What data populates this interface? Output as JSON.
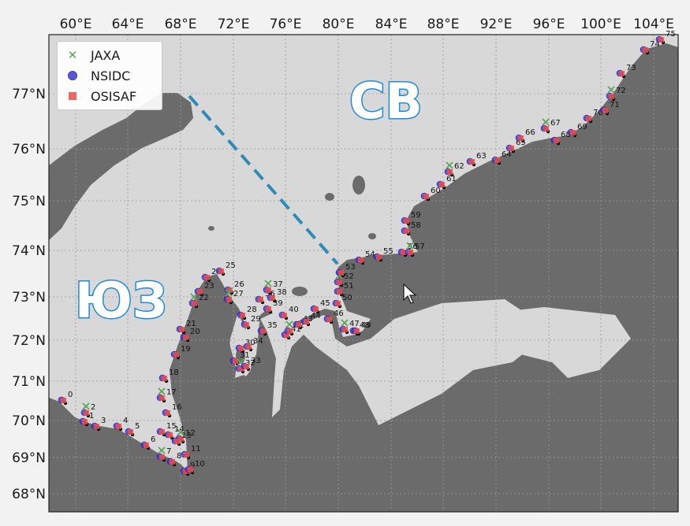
{
  "map": {
    "lon_labels": [
      "60°E",
      "64°E",
      "68°E",
      "72°E",
      "76°E",
      "80°E",
      "84°E",
      "88°E",
      "92°E",
      "96°E",
      "100°E",
      "104°E"
    ],
    "lat_labels": [
      "77°N",
      "76°N",
      "75°N",
      "74°N",
      "73°N",
      "72°N",
      "71°N",
      "70°N",
      "69°N",
      "68°N"
    ],
    "region_ne": "СВ",
    "region_sw": "ЮЗ",
    "colors": {
      "land": "#6b6b6b",
      "sea": "#d6d6d6",
      "route": "#2e8bb5",
      "jaxa": "#5aa55a",
      "nsidc": "#3a3ad8",
      "osisaf": "#ee4a4a"
    }
  },
  "legend": {
    "jaxa": {
      "label": "JAXA",
      "symbol": "x-mark"
    },
    "nsidc": {
      "label": "NSIDC",
      "symbol": "circle"
    },
    "osisaf": {
      "label": "OSISAF",
      "symbol": "square"
    }
  },
  "stations": [
    "0",
    "1",
    "2",
    "3",
    "4",
    "5",
    "6",
    "7",
    "8",
    "9",
    "10",
    "11",
    "12",
    "13",
    "14",
    "15",
    "16",
    "17",
    "18",
    "19",
    "20",
    "21",
    "22",
    "23",
    "24",
    "25",
    "26",
    "27",
    "28",
    "29",
    "30",
    "31",
    "32",
    "33",
    "34",
    "35",
    "36",
    "37",
    "38",
    "39",
    "40",
    "41",
    "42",
    "43",
    "44",
    "45",
    "46",
    "47",
    "48",
    "49",
    "50",
    "51",
    "52",
    "53",
    "54",
    "55",
    "56",
    "57",
    "58",
    "59",
    "60",
    "61",
    "62",
    "63",
    "64",
    "65",
    "66",
    "67",
    "68",
    "69",
    "70",
    "71",
    "72",
    "73",
    "74",
    "75"
  ]
}
